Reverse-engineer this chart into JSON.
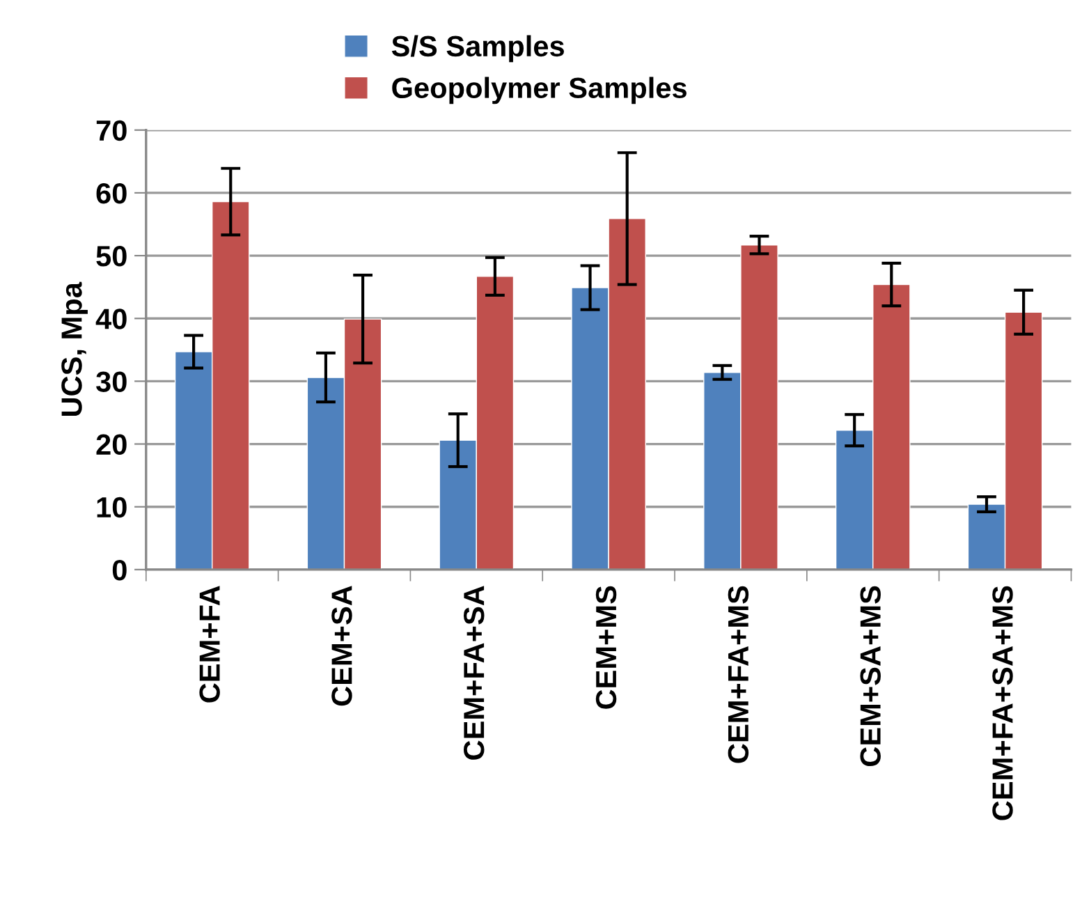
{
  "chart_data": {
    "type": "bar",
    "ylabel": "UCS, Mpa",
    "categories": [
      "CEM+FA",
      "CEM+SA",
      "CEM+FA+SA",
      "CEM+MS",
      "CEM+FA+MS",
      "CEM+SA+MS",
      "CEM+FA+SA+MS"
    ],
    "series": [
      {
        "name": "S/S Samples",
        "color": "#4f81bd",
        "values": [
          34.7,
          30.6,
          20.6,
          44.9,
          31.4,
          22.2,
          10.4
        ],
        "errors": [
          2.6,
          3.9,
          4.2,
          3.5,
          1.1,
          2.5,
          1.2
        ]
      },
      {
        "name": "Geopolymer Samples",
        "color": "#c0504d",
        "values": [
          58.6,
          39.9,
          46.7,
          55.9,
          51.7,
          45.4,
          41.0
        ],
        "errors": [
          5.3,
          7.0,
          3.0,
          10.5,
          1.4,
          3.4,
          3.5
        ]
      }
    ],
    "ylim": [
      0,
      70
    ],
    "yticks": [
      0,
      10,
      20,
      30,
      40,
      50,
      60,
      70
    ],
    "grid": "y",
    "legend": "top"
  }
}
